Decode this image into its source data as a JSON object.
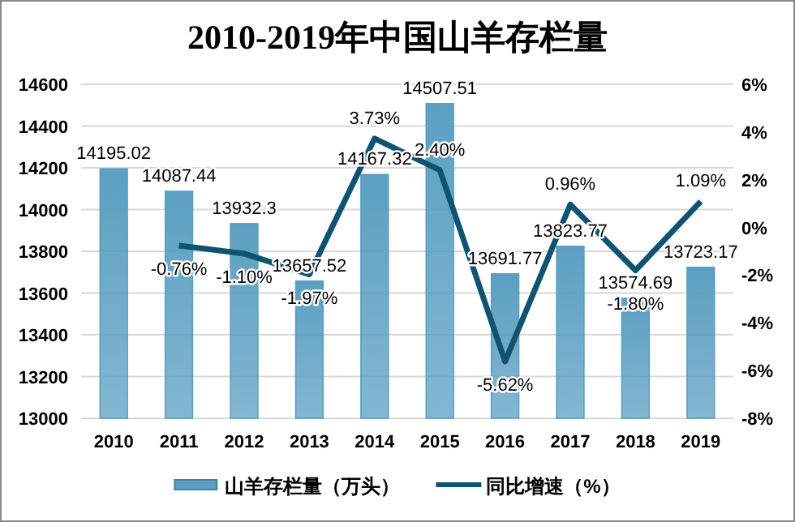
{
  "chart_data": {
    "type": "bar",
    "title": "2010-2019年中国山羊存栏量",
    "categories": [
      "2010",
      "2011",
      "2012",
      "2013",
      "2014",
      "2015",
      "2016",
      "2017",
      "2018",
      "2019"
    ],
    "series": [
      {
        "name": "山羊存栏量（万头）",
        "color": "#5b9fc2",
        "values": [
          14195.02,
          14087.44,
          13932.3,
          13657.52,
          14167.32,
          14507.51,
          13691.77,
          13823.77,
          13574.69,
          13723.17
        ],
        "value_labels": [
          "14195.02",
          "14087.44",
          "13932.3",
          "13657.52",
          "14167.32",
          "14507.51",
          "13691.77",
          "13823.77",
          "13574.69",
          "13723.17"
        ]
      },
      {
        "name": "同比增速（%）",
        "type": "line",
        "axis": "y2",
        "color": "#0e5470",
        "values": [
          null,
          -0.76,
          -1.1,
          -1.97,
          3.73,
          2.4,
          -5.62,
          0.96,
          -1.8,
          1.09
        ],
        "value_labels": [
          null,
          "-0.76%",
          "-1.10%",
          "-1.97%",
          "3.73%",
          "2.40%",
          "-5.62%",
          "0.96%",
          "-1.80%",
          "1.09%"
        ]
      }
    ],
    "ylim": [
      13000,
      14600
    ],
    "yticks": [
      13000,
      13200,
      13400,
      13600,
      13800,
      14000,
      14200,
      14400,
      14600
    ],
    "y2lim": [
      -8,
      6
    ],
    "y2ticks": [
      {
        "value": -8,
        "label": "-8%"
      },
      {
        "value": -6,
        "label": "-6%"
      },
      {
        "value": -4,
        "label": "-4%"
      },
      {
        "value": -2,
        "label": "-2%"
      },
      {
        "value": 0,
        "label": "0%"
      },
      {
        "value": 2,
        "label": "2%"
      },
      {
        "value": 4,
        "label": "4%"
      },
      {
        "value": 6,
        "label": "6%"
      }
    ],
    "grid": "y",
    "legend": "bottom"
  }
}
